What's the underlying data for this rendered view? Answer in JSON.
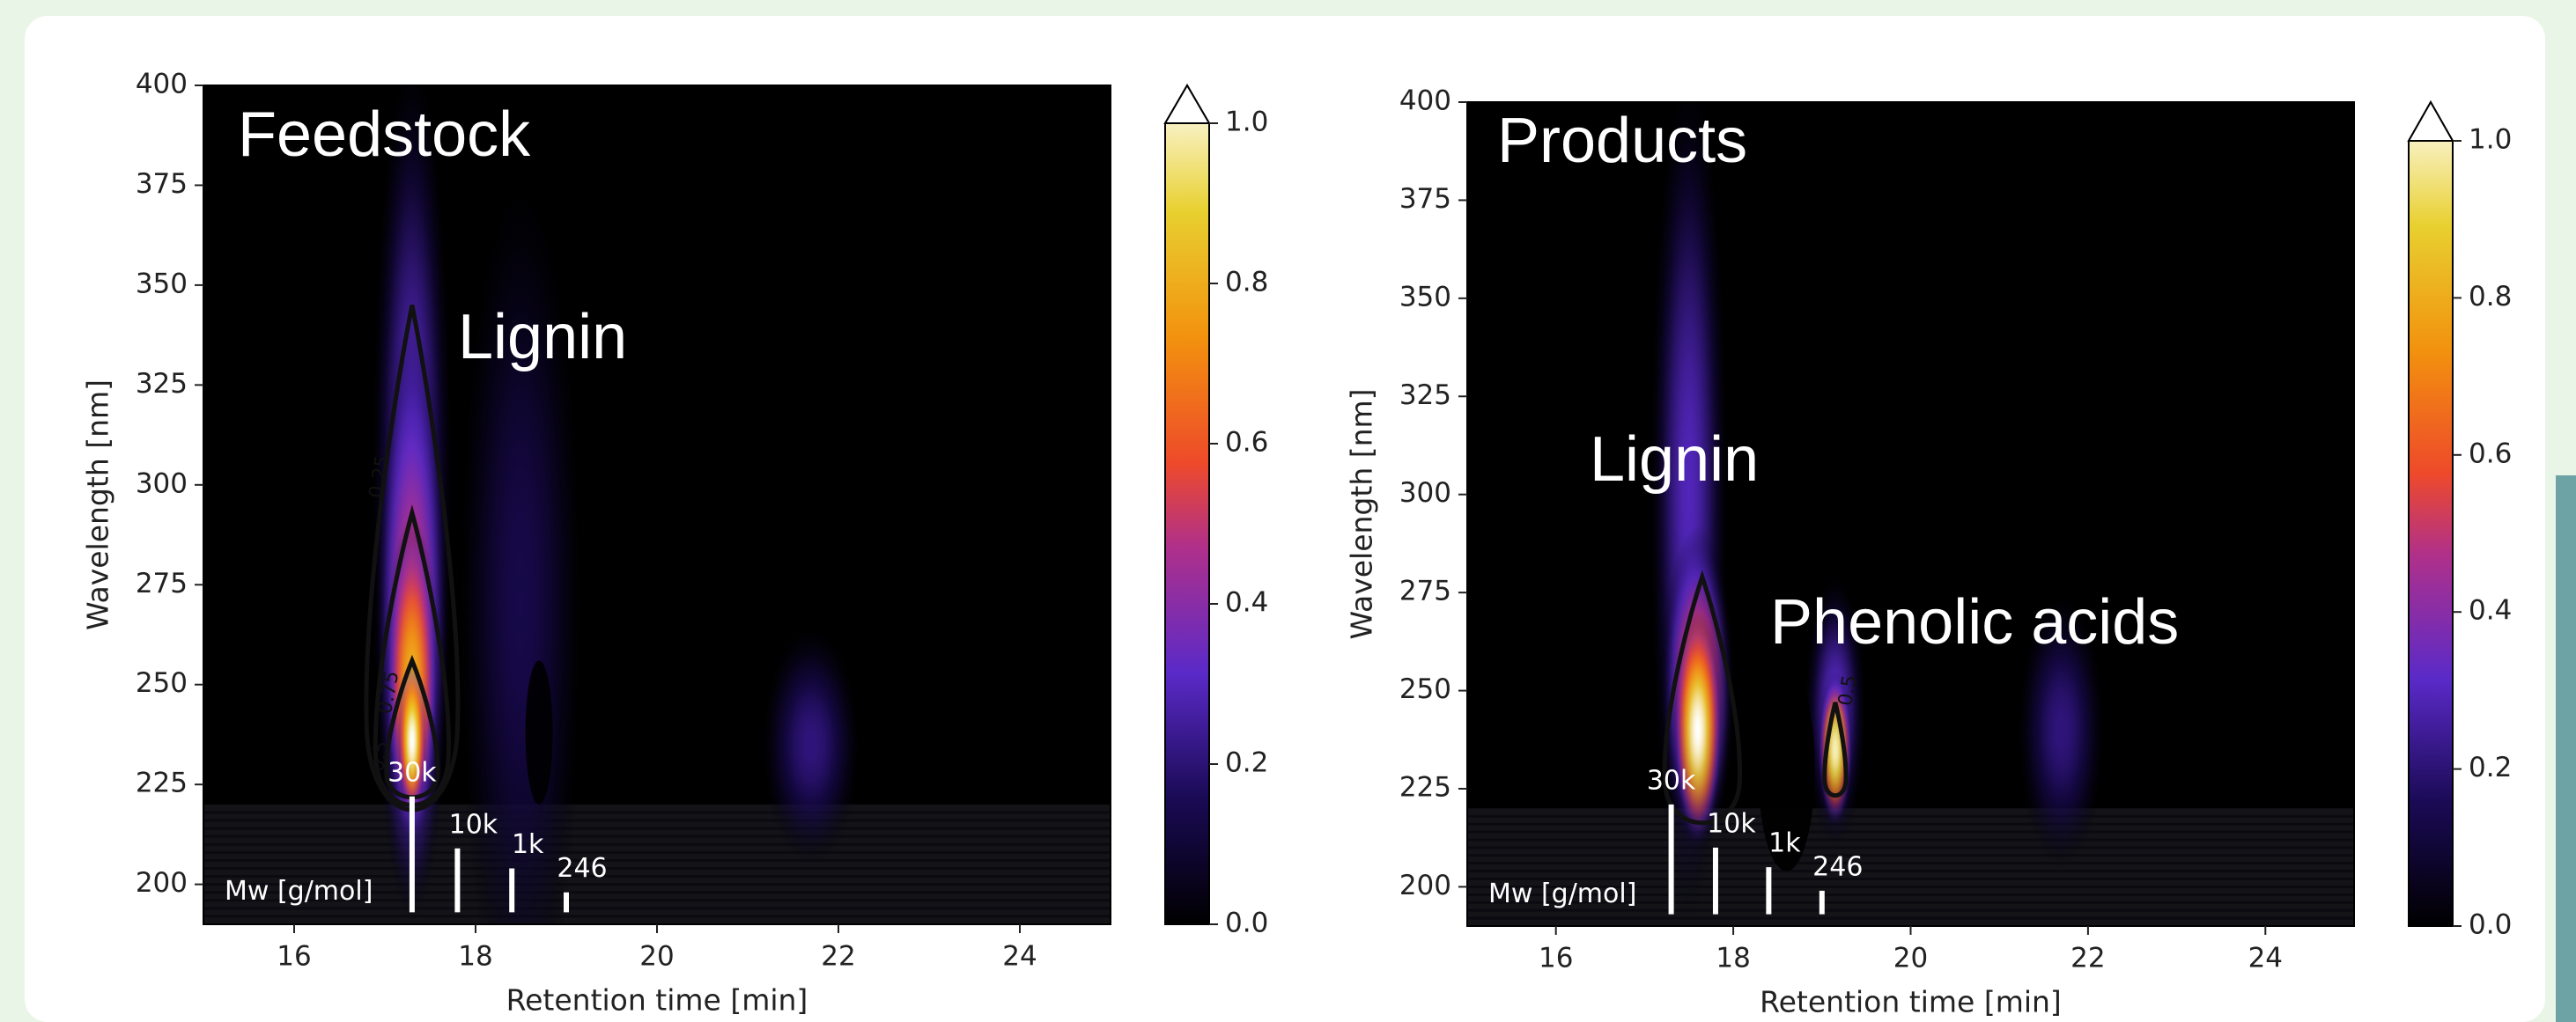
{
  "chart_data": [
    {
      "type": "heatmap",
      "annotations": [
        "Feedstock",
        "Lignin"
      ],
      "xlabel": "Retention time [min]",
      "ylabel": "Wavelength [nm]",
      "xlim": [
        15,
        25
      ],
      "xticks": [
        16,
        18,
        20,
        22,
        24
      ],
      "ylim": [
        190,
        400
      ],
      "yticks": [
        200,
        225,
        250,
        275,
        300,
        325,
        350,
        375,
        400
      ],
      "clim": [
        0,
        1
      ],
      "cticks": [
        {
          "value": 0,
          "label": "0.0"
        },
        0.2,
        0.4,
        0.6,
        0.8,
        {
          "value": 1,
          "label": "1.0"
        }
      ],
      "contour_levels": [
        0.25,
        0.5,
        0.75
      ],
      "mw_markers": {
        "title": "Mw [g/mol]",
        "labels": [
          "30k",
          "10k",
          "1k",
          "246"
        ],
        "x": [
          17.3,
          17.8,
          18.4,
          19.0
        ]
      }
    },
    {
      "type": "heatmap",
      "annotations": [
        "Products",
        "Lignin",
        "Phenolic acids"
      ],
      "xlabel": "Retention time [min]",
      "ylabel": "Wavelength [nm]",
      "xlim": [
        15,
        25
      ],
      "xticks": [
        16,
        18,
        20,
        22,
        24
      ],
      "ylim": [
        190,
        400
      ],
      "yticks": [
        200,
        225,
        250,
        275,
        300,
        325,
        350,
        375,
        400
      ],
      "clim": [
        0,
        1
      ],
      "cticks": [
        {
          "value": 0,
          "label": "0.0"
        },
        0.2,
        0.4,
        0.6,
        0.8,
        {
          "value": 1,
          "label": "1.0"
        }
      ],
      "contour_levels": [
        0.5
      ],
      "mw_markers": {
        "title": "Mw [g/mol]",
        "labels": [
          "30k",
          "10k",
          "1k",
          "246"
        ],
        "x": [
          17.3,
          17.8,
          18.4,
          19.0
        ]
      }
    }
  ]
}
